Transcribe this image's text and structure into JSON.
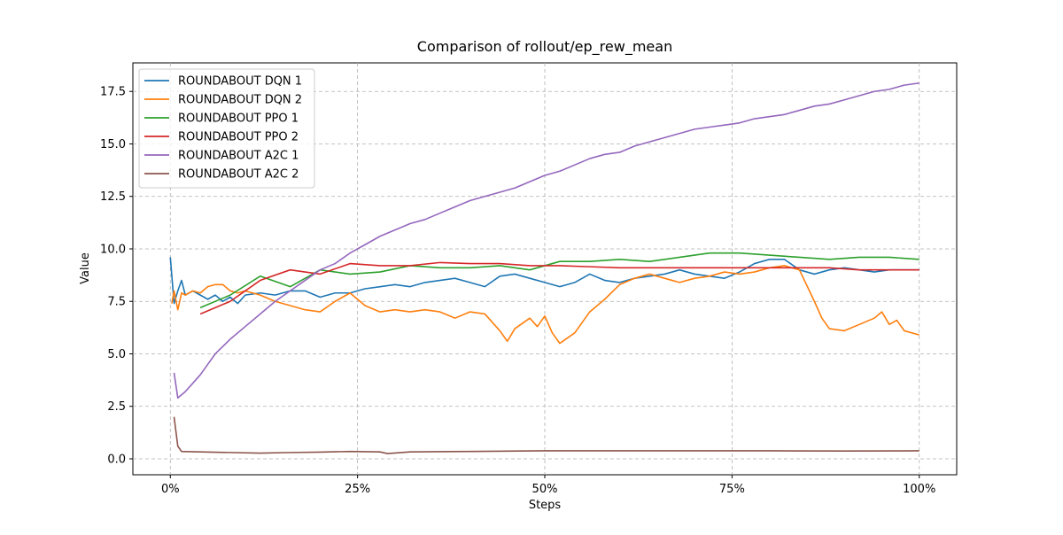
{
  "chart_data": {
    "type": "line",
    "title": "Comparison of rollout/ep_rew_mean",
    "xlabel": "Steps",
    "ylabel": "Value",
    "xlim": [
      -5,
      105
    ],
    "ylim": [
      -0.76,
      18.86
    ],
    "xticks": [
      {
        "value": 0,
        "label": "0%"
      },
      {
        "value": 25,
        "label": "25%"
      },
      {
        "value": 50,
        "label": "50%"
      },
      {
        "value": 75,
        "label": "75%"
      },
      {
        "value": 100,
        "label": "100%"
      }
    ],
    "yticks": [
      {
        "value": 0,
        "label": "0.0"
      },
      {
        "value": 2.5,
        "label": "2.5"
      },
      {
        "value": 5,
        "label": "5.0"
      },
      {
        "value": 7.5,
        "label": "7.5"
      },
      {
        "value": 10,
        "label": "10.0"
      },
      {
        "value": 12.5,
        "label": "12.5"
      },
      {
        "value": 15,
        "label": "15.0"
      },
      {
        "value": 17.5,
        "label": "17.5"
      }
    ],
    "grid": true,
    "legend": "upper left",
    "series": [
      {
        "name": "ROUNDABOUT DQN 1",
        "color": "#1f77b4",
        "x": [
          0,
          0.5,
          1,
          1.5,
          2,
          3,
          4,
          5,
          6,
          7,
          8,
          9,
          10,
          12,
          14,
          16,
          18,
          20,
          22,
          24,
          26,
          28,
          30,
          32,
          34,
          36,
          38,
          40,
          42,
          44,
          46,
          48,
          50,
          52,
          54,
          56,
          58,
          60,
          62,
          64,
          66,
          68,
          70,
          72,
          74,
          76,
          78,
          80,
          82,
          84,
          86,
          88,
          90,
          92,
          94,
          96,
          98,
          100
        ],
        "values": [
          9.6,
          7.4,
          8.0,
          8.5,
          7.8,
          8.0,
          7.8,
          7.6,
          7.8,
          7.5,
          7.7,
          7.4,
          7.8,
          7.9,
          7.8,
          8.0,
          8.0,
          7.7,
          7.9,
          7.9,
          8.1,
          8.2,
          8.3,
          8.2,
          8.4,
          8.5,
          8.6,
          8.4,
          8.2,
          8.7,
          8.8,
          8.6,
          8.4,
          8.2,
          8.4,
          8.8,
          8.5,
          8.4,
          8.6,
          8.7,
          8.8,
          9.0,
          8.8,
          8.7,
          8.6,
          8.9,
          9.3,
          9.5,
          9.5,
          9.0,
          8.8,
          9.0,
          9.1,
          9.0,
          8.9,
          9.0,
          9.0,
          9.0
        ]
      },
      {
        "name": "ROUNDABOUT DQN 2",
        "color": "#ff7f0e",
        "x": [
          0.2,
          0.5,
          1,
          1.5,
          2,
          3,
          4,
          5,
          6,
          7,
          8,
          9,
          10,
          12,
          14,
          16,
          18,
          20,
          22,
          24,
          26,
          28,
          30,
          32,
          34,
          36,
          38,
          40,
          42,
          44,
          45,
          46,
          48,
          49,
          50,
          51,
          52,
          54,
          56,
          58,
          60,
          62,
          64,
          66,
          68,
          70,
          72,
          74,
          76,
          78,
          80,
          82,
          84,
          86,
          87,
          88,
          90,
          92,
          94,
          95,
          96,
          97,
          98,
          100
        ],
        "values": [
          7.4,
          8.0,
          7.1,
          7.9,
          7.8,
          8.0,
          7.9,
          8.2,
          8.3,
          8.3,
          8.0,
          7.9,
          8.0,
          7.8,
          7.5,
          7.3,
          7.1,
          7.0,
          7.5,
          7.9,
          7.3,
          7.0,
          7.1,
          7.0,
          7.1,
          7.0,
          6.7,
          7.0,
          6.9,
          6.1,
          5.6,
          6.2,
          6.7,
          6.3,
          6.8,
          6.0,
          5.5,
          6.0,
          7.0,
          7.6,
          8.3,
          8.6,
          8.8,
          8.6,
          8.4,
          8.6,
          8.7,
          8.9,
          8.8,
          8.9,
          9.1,
          9.2,
          9.0,
          7.5,
          6.7,
          6.2,
          6.1,
          6.4,
          6.7,
          7.0,
          6.4,
          6.6,
          6.1,
          5.9
        ]
      },
      {
        "name": "ROUNDABOUT PPO 1",
        "color": "#2ca02c",
        "x": [
          4,
          8,
          12,
          16,
          20,
          24,
          28,
          32,
          36,
          40,
          44,
          48,
          52,
          56,
          60,
          64,
          68,
          72,
          76,
          80,
          84,
          88,
          92,
          96,
          100
        ],
        "values": [
          7.2,
          7.8,
          8.7,
          8.2,
          9.0,
          8.8,
          8.9,
          9.2,
          9.1,
          9.1,
          9.2,
          9.0,
          9.4,
          9.4,
          9.5,
          9.4,
          9.6,
          9.8,
          9.8,
          9.7,
          9.6,
          9.5,
          9.6,
          9.6,
          9.5
        ]
      },
      {
        "name": "ROUNDABOUT PPO 2",
        "color": "#d62728",
        "x": [
          4,
          8,
          12,
          16,
          20,
          24,
          28,
          32,
          36,
          40,
          44,
          48,
          52,
          56,
          60,
          64,
          68,
          72,
          76,
          80,
          84,
          88,
          92,
          96,
          100
        ],
        "values": [
          6.9,
          7.5,
          8.5,
          9.0,
          8.8,
          9.3,
          9.2,
          9.2,
          9.35,
          9.3,
          9.3,
          9.2,
          9.2,
          9.15,
          9.1,
          9.1,
          9.1,
          9.1,
          9.1,
          9.1,
          9.1,
          9.1,
          9.0,
          9.0,
          9.0
        ]
      },
      {
        "name": "ROUNDABOUT A2C 1",
        "color": "#9467bd",
        "x": [
          0.5,
          1,
          2,
          3,
          4,
          5,
          6,
          8,
          10,
          12,
          14,
          16,
          18,
          20,
          22,
          24,
          26,
          28,
          30,
          32,
          34,
          36,
          38,
          40,
          42,
          44,
          46,
          48,
          50,
          52,
          54,
          56,
          58,
          60,
          62,
          64,
          66,
          68,
          70,
          72,
          74,
          76,
          78,
          80,
          82,
          84,
          86,
          88,
          90,
          92,
          94,
          96,
          98,
          100
        ],
        "values": [
          4.1,
          2.9,
          3.2,
          3.6,
          4.0,
          4.5,
          5.0,
          5.7,
          6.3,
          6.9,
          7.5,
          8.0,
          8.5,
          9.0,
          9.3,
          9.8,
          10.2,
          10.6,
          10.9,
          11.2,
          11.4,
          11.7,
          12.0,
          12.3,
          12.5,
          12.7,
          12.9,
          13.2,
          13.5,
          13.7,
          14.0,
          14.3,
          14.5,
          14.6,
          14.9,
          15.1,
          15.3,
          15.5,
          15.7,
          15.8,
          15.9,
          16.0,
          16.2,
          16.3,
          16.4,
          16.6,
          16.8,
          16.9,
          17.1,
          17.3,
          17.5,
          17.6,
          17.8,
          17.9
        ]
      },
      {
        "name": "ROUNDABOUT A2C 2",
        "color": "#8c564b",
        "x": [
          0.5,
          1,
          1.5,
          4,
          8,
          12,
          16,
          20,
          24,
          28,
          29,
          32,
          40,
          50,
          60,
          70,
          80,
          90,
          100
        ],
        "values": [
          2.0,
          0.6,
          0.35,
          0.33,
          0.3,
          0.27,
          0.3,
          0.32,
          0.35,
          0.33,
          0.25,
          0.33,
          0.35,
          0.38,
          0.38,
          0.38,
          0.38,
          0.37,
          0.38
        ]
      }
    ]
  }
}
